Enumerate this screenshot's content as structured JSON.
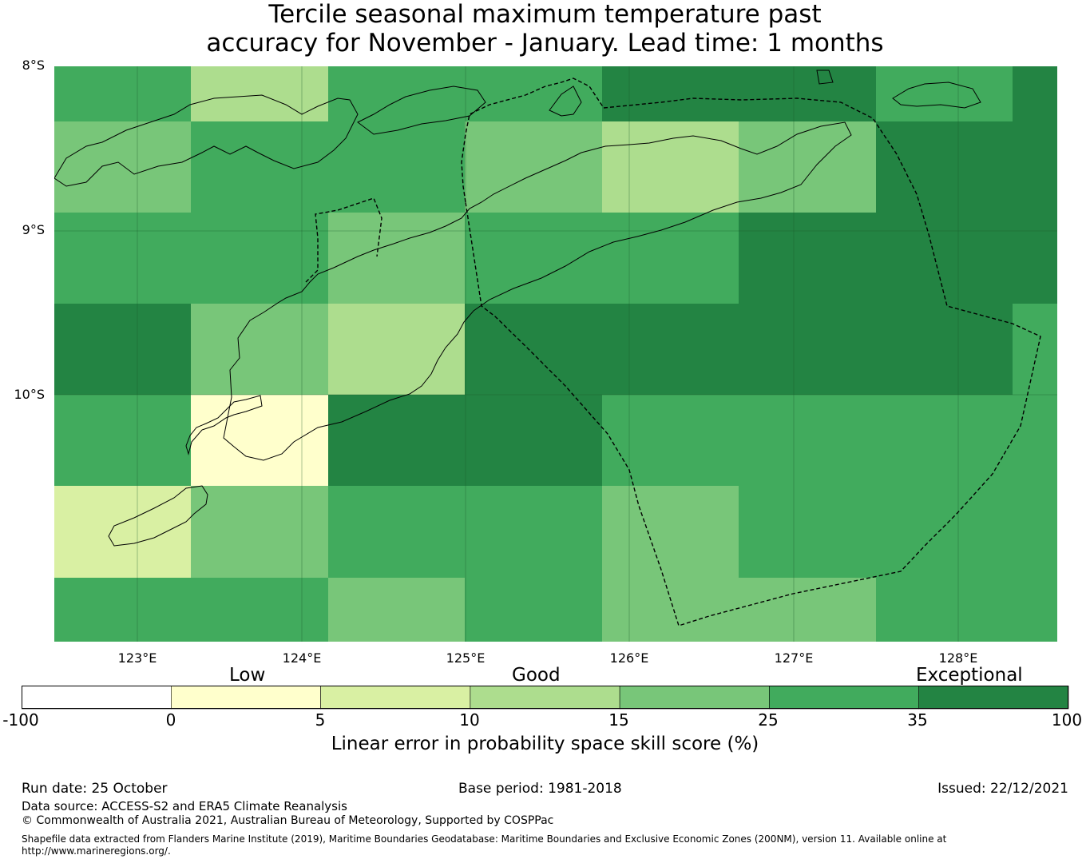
{
  "title": {
    "line1": "Tercile seasonal maximum temperature past",
    "line2": "accuracy for November - January. Lead time: 1 months"
  },
  "map": {
    "lat_labels": [
      "8°S",
      "9°S",
      "10°S"
    ],
    "lon_labels": [
      "123°E",
      "124°E",
      "125°E",
      "126°E",
      "127°E",
      "128°E"
    ],
    "grid_colors": [
      [
        "#41ab5d",
        "#addd8e",
        "#41ab5d",
        "#41ab5d",
        "#238443",
        "#238443",
        "#41ab5d",
        "#238443"
      ],
      [
        "#78c679",
        "#41ab5d",
        "#41ab5d",
        "#78c679",
        "#addd8e",
        "#78c679",
        "#238443",
        "#238443"
      ],
      [
        "#41ab5d",
        "#41ab5d",
        "#78c679",
        "#41ab5d",
        "#41ab5d",
        "#238443",
        "#238443",
        "#238443"
      ],
      [
        "#238443",
        "#78c679",
        "#addd8e",
        "#238443",
        "#238443",
        "#238443",
        "#238443",
        "#41ab5d"
      ],
      [
        "#41ab5d",
        "#ffffcc",
        "#238443",
        "#238443",
        "#41ab5d",
        "#41ab5d",
        "#41ab5d",
        "#41ab5d"
      ],
      [
        "#d9f0a3",
        "#78c679",
        "#41ab5d",
        "#41ab5d",
        "#78c679",
        "#41ab5d",
        "#41ab5d",
        "#41ab5d"
      ],
      [
        "#41ab5d",
        "#41ab5d",
        "#78c679",
        "#41ab5d",
        "#78c679",
        "#78c679",
        "#41ab5d",
        "#41ab5d"
      ]
    ],
    "eez_boundary_style": "dashed"
  },
  "colorbar": {
    "category_labels": [
      "Low",
      "Good",
      "Exceptional"
    ],
    "ticks": [
      "-100",
      "0",
      "5",
      "10",
      "15",
      "25",
      "35",
      "100"
    ],
    "colors": [
      "#ffffff",
      "#ffffcc",
      "#d9f0a3",
      "#addd8e",
      "#78c679",
      "#41ab5d",
      "#238443"
    ],
    "label": "Linear error in probability space skill score (%)"
  },
  "footer": {
    "run_date": "Run date: 25 October",
    "base_period": "Base period: 1981-2018",
    "issued": "Issued: 22/12/2021",
    "data_source": "Data source: ACCESS-S2 and ERA5 Climate Reanalysis",
    "copyright": "© Commonwealth of Australia 2021, Australian Bureau of Meteorology, Supported by COSPPac",
    "shapefile": "Shapefile data extracted from Flanders Marine Institute (2019), Maritime Boundaries Geodatabase: Maritime Boundaries and Exclusive Economic Zones (200NM), version 11. Available online at http://www.marineregions.org/."
  }
}
